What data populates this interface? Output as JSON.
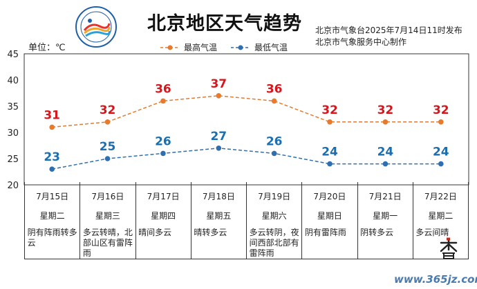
{
  "header": {
    "title": "北京地区天气趋势",
    "issuer_line1": "北京市气象台2025年7月14日11时发布",
    "issuer_line2": "北京市气象服务中心制作",
    "unit_label": "单位：℃"
  },
  "chart_data": {
    "type": "line",
    "title": "北京地区天气趋势",
    "ylabel": "单位：℃",
    "ylim": [
      20,
      45
    ],
    "yticks": [
      20,
      25,
      30,
      35,
      40,
      45
    ],
    "grid": false,
    "legend_position": "top-center",
    "categories": [
      "7月15日",
      "7月16日",
      "7月17日",
      "7月18日",
      "7月19日",
      "7月20日",
      "7月21日",
      "7月22日"
    ],
    "series": [
      {
        "name": "最高气温",
        "values": [
          31,
          32,
          36,
          37,
          36,
          32,
          32,
          32
        ],
        "color": "#e87a2a",
        "label_color": "#d9151b"
      },
      {
        "name": "最低气温",
        "values": [
          23,
          25,
          26,
          27,
          26,
          24,
          24,
          24
        ],
        "color": "#2e6fb0",
        "label_color": "#1a6fb3"
      }
    ]
  },
  "days": [
    {
      "date": "7月15日",
      "week": "星期二",
      "weather": "阴有阵雨转多云"
    },
    {
      "date": "7月16日",
      "week": "星期三",
      "weather": "多云转晴，北部山区有雷阵雨"
    },
    {
      "date": "7月17日",
      "week": "星期四",
      "weather": "晴间多云"
    },
    {
      "date": "7月18日",
      "week": "星期五",
      "weather": "晴转多云"
    },
    {
      "date": "7月19日",
      "week": "星期六",
      "weather": "多云转阴，夜间西部北部有雷阵雨"
    },
    {
      "date": "7月20日",
      "week": "星期日",
      "weather": "阴有雷阵雨"
    },
    {
      "date": "7月21日",
      "week": "星期一",
      "weather": "阴转多云"
    },
    {
      "date": "7月22日",
      "week": "星期二",
      "weather": "多云间晴"
    }
  ],
  "stamp_text": "大暑",
  "watermark": "www.365jz.com"
}
